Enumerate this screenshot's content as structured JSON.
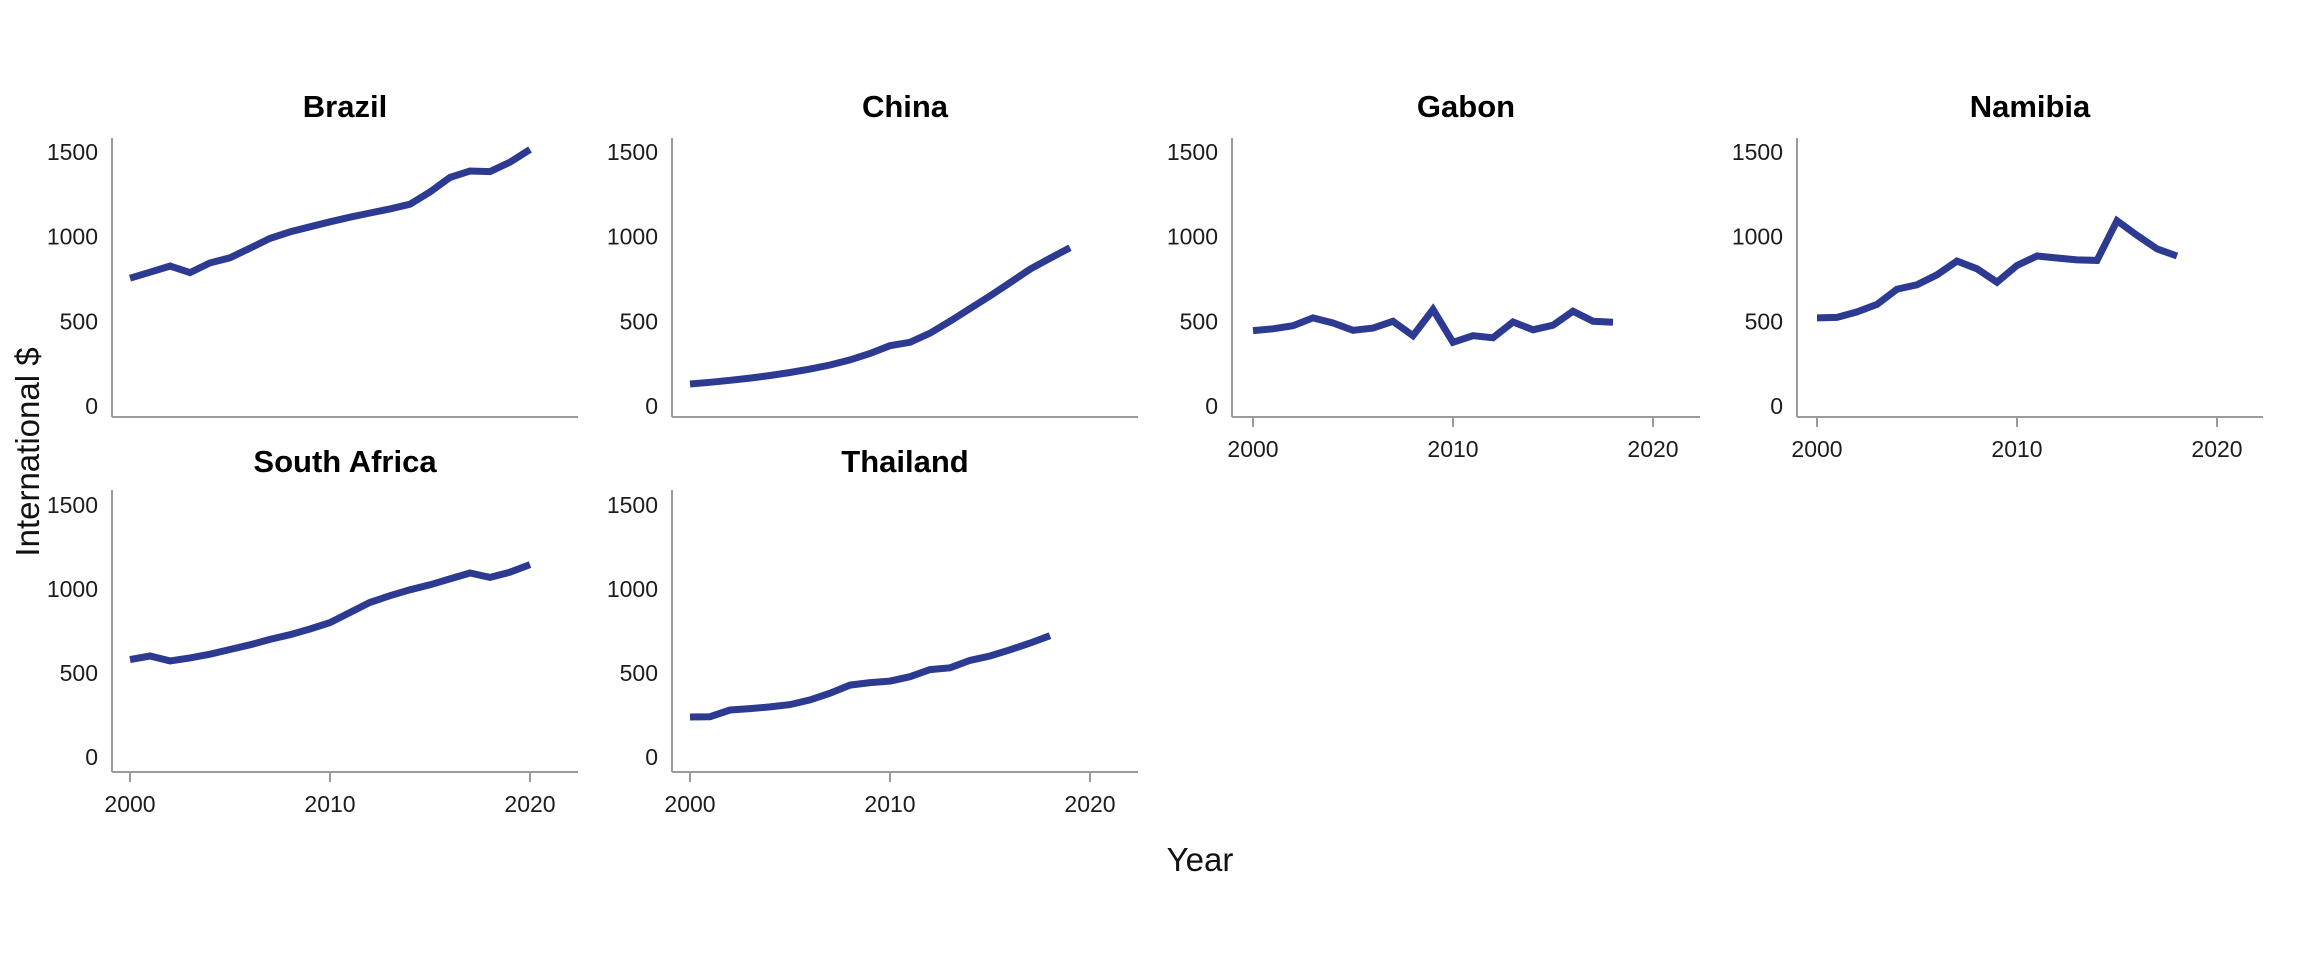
{
  "figure": {
    "ylabel": "International $",
    "xlabel": "Year",
    "line_color": "#2d3a92",
    "axis_color": "#9a9a9a",
    "text_color": "#1c1c1c",
    "background": "#ffffff"
  },
  "chart_data": [
    {
      "type": "line",
      "title": "Brazil",
      "grid_row": 0,
      "grid_col": 0,
      "show_x_tick_labels": false,
      "ylim": [
        0,
        1500
      ],
      "yticks": [
        0,
        500,
        1000,
        1500
      ],
      "xticks": [
        2000,
        2010,
        2020
      ],
      "gridlines": false,
      "x": [
        2000,
        2001,
        2002,
        2003,
        2004,
        2005,
        2006,
        2007,
        2008,
        2009,
        2010,
        2011,
        2012,
        2013,
        2014,
        2015,
        2016,
        2017,
        2018,
        2019,
        2020
      ],
      "values": [
        755,
        790,
        826,
        788,
        845,
        875,
        932,
        990,
        1028,
        1058,
        1088,
        1115,
        1140,
        1164,
        1192,
        1264,
        1350,
        1388,
        1384,
        1440,
        1515
      ]
    },
    {
      "type": "line",
      "title": "China",
      "grid_row": 0,
      "grid_col": 1,
      "show_x_tick_labels": false,
      "ylim": [
        0,
        1500
      ],
      "yticks": [
        0,
        500,
        1000,
        1500
      ],
      "xticks": [
        2000,
        2010,
        2020
      ],
      "gridlines": false,
      "x": [
        2000,
        2001,
        2002,
        2003,
        2004,
        2005,
        2006,
        2007,
        2008,
        2009,
        2010,
        2011,
        2012,
        2013,
        2014,
        2015,
        2016,
        2017,
        2018,
        2019
      ],
      "values": [
        130,
        140,
        152,
        165,
        180,
        198,
        218,
        242,
        272,
        310,
        356,
        376,
        430,
        500,
        575,
        650,
        728,
        808,
        872,
        935
      ]
    },
    {
      "type": "line",
      "title": "Gabon",
      "grid_row": 0,
      "grid_col": 2,
      "show_x_tick_labels": true,
      "ylim": [
        0,
        1500
      ],
      "yticks": [
        0,
        500,
        1000,
        1500
      ],
      "xticks": [
        2000,
        2010,
        2020
      ],
      "gridlines": false,
      "x": [
        2000,
        2001,
        2002,
        2003,
        2004,
        2005,
        2006,
        2007,
        2008,
        2009,
        2010,
        2011,
        2012,
        2013,
        2014,
        2015,
        2016,
        2017,
        2018
      ],
      "values": [
        445,
        456,
        474,
        520,
        490,
        447,
        460,
        500,
        415,
        570,
        376,
        415,
        403,
        496,
        450,
        477,
        560,
        500,
        494
      ]
    },
    {
      "type": "line",
      "title": "Namibia",
      "grid_row": 0,
      "grid_col": 3,
      "show_x_tick_labels": true,
      "ylim": [
        0,
        1500
      ],
      "yticks": [
        0,
        500,
        1000,
        1500
      ],
      "xticks": [
        2000,
        2010,
        2020
      ],
      "gridlines": false,
      "x": [
        2000,
        2001,
        2002,
        2003,
        2004,
        2005,
        2006,
        2007,
        2008,
        2009,
        2010,
        2011,
        2012,
        2013,
        2014,
        2015,
        2016,
        2017,
        2018
      ],
      "values": [
        520,
        523,
        556,
        600,
        690,
        716,
        775,
        856,
        810,
        731,
        830,
        886,
        874,
        863,
        860,
        1094,
        1008,
        928,
        886
      ]
    },
    {
      "type": "line",
      "title": "South Africa",
      "grid_row": 1,
      "grid_col": 0,
      "show_x_tick_labels": true,
      "ylim": [
        0,
        1500
      ],
      "yticks": [
        0,
        500,
        1000,
        1500
      ],
      "xticks": [
        2000,
        2010,
        2020
      ],
      "gridlines": false,
      "x": [
        2000,
        2001,
        2002,
        2003,
        2004,
        2005,
        2006,
        2007,
        2008,
        2009,
        2010,
        2011,
        2012,
        2013,
        2014,
        2015,
        2016,
        2017,
        2018,
        2019,
        2020
      ],
      "values": [
        580,
        601,
        572,
        590,
        612,
        640,
        668,
        700,
        728,
        762,
        800,
        860,
        920,
        960,
        995,
        1025,
        1060,
        1095,
        1069,
        1100,
        1145
      ]
    },
    {
      "type": "line",
      "title": "Thailand",
      "grid_row": 1,
      "grid_col": 1,
      "show_x_tick_labels": true,
      "ylim": [
        0,
        1500
      ],
      "yticks": [
        0,
        500,
        1000,
        1500
      ],
      "xticks": [
        2000,
        2010,
        2020
      ],
      "gridlines": false,
      "x": [
        2000,
        2001,
        2002,
        2003,
        2004,
        2005,
        2006,
        2007,
        2008,
        2009,
        2010,
        2011,
        2012,
        2013,
        2014,
        2015,
        2016,
        2017,
        2018
      ],
      "values": [
        238,
        240,
        280,
        288,
        298,
        312,
        340,
        380,
        428,
        443,
        452,
        478,
        520,
        531,
        575,
        601,
        638,
        678,
        722
      ]
    }
  ]
}
